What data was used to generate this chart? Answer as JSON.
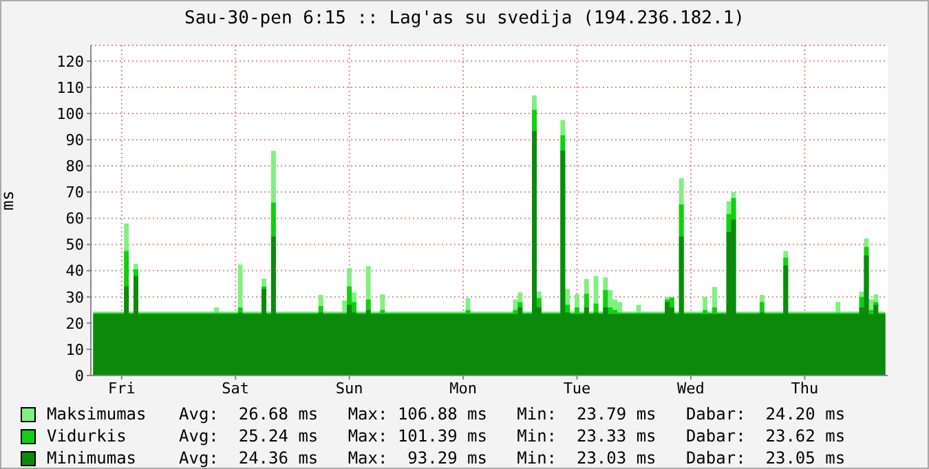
{
  "chart_data": {
    "type": "area",
    "title": "Sau-30-pen 6:15 :: Lag'as su svedija (194.236.182.1)",
    "ylabel": "ms",
    "categories": [
      null,
      null,
      null,
      null,
      null,
      null,
      "Fri",
      null,
      null,
      null,
      null,
      null,
      null,
      null,
      null,
      null,
      null,
      null,
      null,
      null,
      null,
      null,
      null,
      null,
      null,
      null,
      null,
      null,
      null,
      null,
      "Sat",
      null,
      null,
      null,
      null,
      null,
      null,
      null,
      null,
      null,
      null,
      null,
      null,
      null,
      null,
      null,
      null,
      null,
      null,
      null,
      null,
      null,
      null,
      null,
      "Sun",
      null,
      null,
      null,
      null,
      null,
      null,
      null,
      null,
      null,
      null,
      null,
      null,
      null,
      null,
      null,
      null,
      null,
      null,
      null,
      null,
      null,
      null,
      null,
      "Mon",
      null,
      null,
      null,
      null,
      null,
      null,
      null,
      null,
      null,
      null,
      null,
      null,
      null,
      null,
      null,
      null,
      null,
      null,
      null,
      null,
      null,
      null,
      null,
      "Tue",
      null,
      null,
      null,
      null,
      null,
      null,
      null,
      null,
      null,
      null,
      null,
      null,
      null,
      null,
      null,
      null,
      null,
      null,
      null,
      null,
      null,
      null,
      null,
      "Wed",
      null,
      null,
      null,
      null,
      null,
      null,
      null,
      null,
      null,
      null,
      null,
      null,
      null,
      null,
      null,
      null,
      null,
      null,
      null,
      null,
      null,
      null,
      null,
      "Thu",
      null,
      null,
      null,
      null,
      null,
      null,
      null,
      null,
      null,
      null,
      null,
      null,
      null,
      null,
      null,
      null,
      null
    ],
    "series": [
      {
        "name": "Maksimumas",
        "color": "#80f080",
        "values": [
          24.4,
          24.4,
          24.4,
          24.4,
          24.4,
          24.4,
          24.4,
          58,
          24.4,
          42.6,
          24.4,
          24.4,
          24.4,
          24.4,
          24.4,
          24.4,
          24.4,
          24.4,
          24.4,
          24.4,
          24.4,
          24.4,
          24.4,
          24.4,
          24.4,
          24.4,
          26,
          24.4,
          24.4,
          24.4,
          24.4,
          42.3,
          24.4,
          24.4,
          24.4,
          24.4,
          37,
          24.4,
          85.8,
          24.4,
          24.4,
          24.4,
          24.4,
          24.4,
          24.4,
          24.4,
          24.4,
          24.4,
          30.7,
          24.4,
          24.4,
          24.4,
          24.4,
          28.6,
          41,
          31.7,
          24.4,
          24.4,
          41.7,
          24.4,
          24.4,
          31,
          24.4,
          24.4,
          24.4,
          24.4,
          24.4,
          24.4,
          24.4,
          24.4,
          24.4,
          24.4,
          24.4,
          24.4,
          24.4,
          24.4,
          24.4,
          24.4,
          24.4,
          29.5,
          24.4,
          24.4,
          24.4,
          24.4,
          24.4,
          24.4,
          24.4,
          24.4,
          24.4,
          29,
          31.7,
          24.4,
          24.4,
          106.88,
          32,
          24.4,
          24.4,
          24.4,
          24.4,
          97.5,
          33,
          24.4,
          31,
          24.4,
          36.8,
          24.4,
          37.9,
          24.4,
          37.4,
          32.6,
          29,
          28,
          24.4,
          24.4,
          24.4,
          27,
          24.4,
          24.4,
          24.4,
          24.4,
          24.4,
          30,
          30,
          24.4,
          75.3,
          24.4,
          24.4,
          24.4,
          24.4,
          30,
          24.4,
          33.8,
          24.4,
          24.4,
          66.5,
          70,
          24.4,
          24.4,
          24.4,
          24.4,
          24.4,
          30.7,
          24.4,
          24.4,
          24.4,
          24.4,
          47.5,
          24.4,
          24.4,
          24.4,
          24.4,
          24.4,
          24.4,
          24.4,
          24.4,
          24.4,
          24.4,
          28,
          24.4,
          24.4,
          24.4,
          24.4,
          32,
          52.3,
          29,
          31,
          24.4,
          24.4
        ]
      },
      {
        "name": "Vidurkis",
        "color": "#10d010",
        "values": [
          23.9,
          23.9,
          23.9,
          23.9,
          23.9,
          23.9,
          23.9,
          47.5,
          23.9,
          40.5,
          23.9,
          23.9,
          23.9,
          23.9,
          23.9,
          23.9,
          23.9,
          23.9,
          23.9,
          23.9,
          23.9,
          23.9,
          23.9,
          23.9,
          23.9,
          23.9,
          24,
          23.9,
          23.9,
          23.9,
          23.9,
          26,
          23.9,
          23.9,
          23.9,
          23.9,
          34,
          23.9,
          66,
          23.9,
          23.9,
          23.9,
          23.9,
          23.9,
          23.9,
          23.9,
          23.9,
          23.9,
          26.5,
          23.9,
          23.9,
          23.9,
          23.9,
          24,
          34,
          28,
          23.9,
          23.9,
          29,
          23.9,
          23.9,
          25,
          23.9,
          23.9,
          23.9,
          23.9,
          23.9,
          23.9,
          23.9,
          23.9,
          23.9,
          23.9,
          23.9,
          23.9,
          23.9,
          23.9,
          23.9,
          23.9,
          23.9,
          25,
          23.9,
          23.9,
          23.9,
          23.9,
          23.9,
          23.9,
          23.9,
          23.9,
          23.9,
          25,
          28,
          23.9,
          23.9,
          101.39,
          29.5,
          23.9,
          23.9,
          23.9,
          23.9,
          91.7,
          27,
          23.9,
          26,
          23.9,
          31.2,
          23.9,
          27.4,
          23.9,
          32.6,
          26,
          25,
          24,
          23.9,
          23.9,
          23.9,
          24,
          23.9,
          23.9,
          23.9,
          23.9,
          23.9,
          29,
          29.7,
          23.9,
          65.3,
          23.9,
          23.9,
          23.9,
          23.9,
          25,
          23.9,
          26,
          23.9,
          23.9,
          61.6,
          67.7,
          23.9,
          23.9,
          23.9,
          23.9,
          23.9,
          28,
          23.9,
          23.9,
          23.9,
          23.9,
          45,
          23.9,
          23.9,
          23.9,
          23.9,
          23.9,
          23.9,
          23.9,
          23.9,
          23.9,
          23.9,
          24,
          23.9,
          23.9,
          23.9,
          23.9,
          30,
          49,
          25,
          28,
          23.9,
          23.9
        ]
      },
      {
        "name": "Minimumas",
        "color": "#0c8a0c",
        "values": [
          23.4,
          23.4,
          23.4,
          23.4,
          23.4,
          23.4,
          23.4,
          34,
          23.4,
          38,
          23.4,
          23.4,
          23.4,
          23.4,
          23.4,
          23.4,
          23.4,
          23.4,
          23.4,
          23.4,
          23.4,
          23.4,
          23.4,
          23.4,
          23.4,
          23.4,
          23.4,
          23.4,
          23.4,
          23.4,
          23.4,
          24,
          23.4,
          23.4,
          23.4,
          23.4,
          33,
          23.4,
          53,
          23.4,
          23.4,
          23.4,
          23.4,
          23.4,
          23.4,
          23.4,
          23.4,
          23.4,
          24,
          23.4,
          23.4,
          23.4,
          23.4,
          23.4,
          27,
          24,
          23.4,
          23.4,
          25,
          23.4,
          23.4,
          23.4,
          23.4,
          23.4,
          23.4,
          23.4,
          23.4,
          23.4,
          23.4,
          23.4,
          23.4,
          23.4,
          23.4,
          23.4,
          23.4,
          23.4,
          23.4,
          23.4,
          23.4,
          23.4,
          23.4,
          23.4,
          23.4,
          23.4,
          23.4,
          23.4,
          23.4,
          23.4,
          23.4,
          23.4,
          26,
          23.4,
          23.4,
          93.29,
          26,
          23.4,
          23.4,
          23.4,
          23.4,
          85.8,
          24,
          23.4,
          23.4,
          23.4,
          26,
          23.4,
          24,
          23.4,
          26,
          23.4,
          23.4,
          23.4,
          23.4,
          23.4,
          23.4,
          23.4,
          23.4,
          23.4,
          23.4,
          23.4,
          23.4,
          28,
          26,
          23.4,
          53,
          23.4,
          23.4,
          23.4,
          23.4,
          23.4,
          23.4,
          23.4,
          23.4,
          23.4,
          54.7,
          59.5,
          23.4,
          23.4,
          23.4,
          23.4,
          23.4,
          24,
          23.4,
          23.4,
          23.4,
          23.4,
          42,
          23.4,
          23.4,
          23.4,
          23.4,
          23.4,
          23.4,
          23.4,
          23.4,
          23.4,
          23.4,
          23.4,
          23.4,
          23.4,
          23.4,
          23.4,
          26,
          45.8,
          23.4,
          27,
          23.4,
          23.4
        ]
      }
    ],
    "ylim": [
      0,
      126
    ],
    "yticks": [
      0,
      10,
      20,
      30,
      40,
      50,
      60,
      70,
      80,
      90,
      100,
      110,
      120
    ],
    "grid": true,
    "legend": "bottom",
    "annotations": [
      "Avg:  26.68 ms   Max: 106.88 ms   Min:  23.79 ms   Dabar:  24.20 ms",
      "Avg:  25.24 ms   Max: 101.39 ms   Min:  23.33 ms   Dabar:  23.62 ms",
      "Avg:  24.36 ms   Max:  93.29 ms   Min:  23.03 ms   Dabar:  23.05 ms"
    ]
  }
}
